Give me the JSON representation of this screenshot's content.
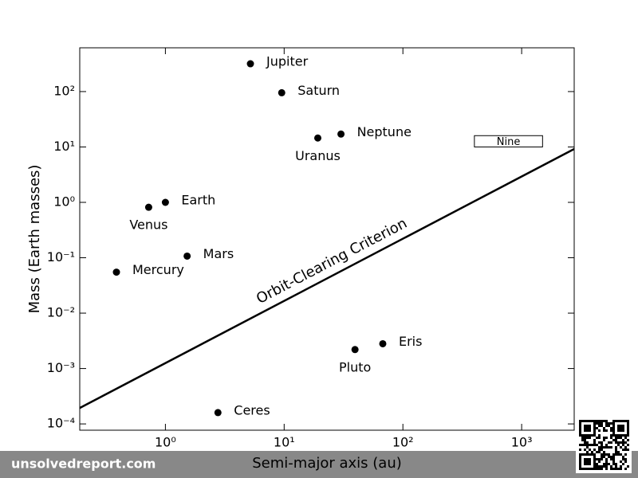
{
  "chart_data": {
    "type": "scatter",
    "x_label": "Semi-major axis (au)",
    "y_label": "Mass (Earth masses)",
    "log_x": true,
    "log_y": true,
    "xlim": [
      0.19,
      2770
    ],
    "ylim": [
      7.7e-05,
      617
    ],
    "xticks": [
      {
        "value": 1,
        "label": "10⁰"
      },
      {
        "value": 10,
        "label": "10¹"
      },
      {
        "value": 100,
        "label": "10²"
      },
      {
        "value": 1000,
        "label": "10³"
      }
    ],
    "yticks": [
      {
        "value": 0.0001,
        "label": "10⁻⁴"
      },
      {
        "value": 0.001,
        "label": "10⁻³"
      },
      {
        "value": 0.01,
        "label": "10⁻²"
      },
      {
        "value": 0.1,
        "label": "10⁻¹"
      },
      {
        "value": 1,
        "label": "10⁰"
      },
      {
        "value": 10,
        "label": "10¹"
      },
      {
        "value": 100,
        "label": "10²"
      }
    ],
    "color": "#000000",
    "labels": [
      "Mercury",
      "Venus",
      "Earth",
      "Mars",
      "Jupiter",
      "Saturn",
      "Uranus",
      "Neptune",
      "Ceres",
      "Pluto",
      "Eris"
    ],
    "x": [
      0.387,
      0.723,
      1,
      1.524,
      5.2,
      9.54,
      19.2,
      30.1,
      2.77,
      39.5,
      67.7
    ],
    "values": [
      0.055,
      0.815,
      1,
      0.107,
      317.8,
      95.2,
      14.5,
      17.1,
      0.00016,
      0.0022,
      0.0028
    ],
    "criterion": {
      "name": "Orbit-Clearing Criterion",
      "x": [
        0.19,
        2770
      ],
      "values": [
        0.000194,
        9.2
      ]
    },
    "nine": {
      "label": "Nine",
      "x": [
        400,
        1500
      ],
      "values": [
        10,
        16
      ]
    },
    "footer": "unsolvedreport.com"
  }
}
